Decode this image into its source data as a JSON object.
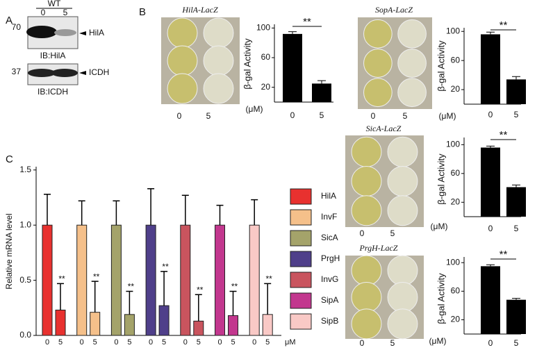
{
  "panel_labels": [
    "A",
    "B",
    "C"
  ],
  "blot": {
    "condition": "WT",
    "lanes": [
      "0",
      "5"
    ],
    "rows": [
      {
        "marker": "70",
        "band": "HilA",
        "antibody": "IB:HilA"
      },
      {
        "marker": "37",
        "band": "ICDH",
        "antibody": "IB:ICDH"
      }
    ]
  },
  "chart_data": [
    {
      "type": "bar",
      "title": "HilA-LacZ",
      "plate_labels": [
        "0",
        "5"
      ],
      "unit": "(μM)",
      "y_label": "β-gal Activity",
      "categories": [
        "0",
        "5"
      ],
      "values": [
        92,
        25
      ],
      "errors": [
        3,
        4
      ],
      "significance": "**",
      "color": "#000000",
      "ylim": [
        0,
        105
      ],
      "yticks": [
        20,
        60,
        100
      ]
    },
    {
      "type": "bar",
      "title": "SopA-LacZ",
      "plate_labels": [
        "0",
        "5"
      ],
      "unit": "(μM)",
      "y_label": "β-gal Activity",
      "categories": [
        "0",
        "5"
      ],
      "values": [
        96,
        34
      ],
      "errors": [
        3,
        4
      ],
      "significance": "**",
      "color": "#000000",
      "ylim": [
        0,
        105
      ],
      "yticks": [
        20,
        60,
        100
      ]
    },
    {
      "type": "bar",
      "title": "SicA-LacZ",
      "plate_labels": [
        "0",
        "5"
      ],
      "unit": "(μM)",
      "y_label": "β-gal Activity",
      "categories": [
        "0",
        "5"
      ],
      "values": [
        96,
        41
      ],
      "errors": [
        2,
        3
      ],
      "significance": "**",
      "color": "#000000",
      "ylim": [
        0,
        110
      ],
      "yticks": [
        20,
        60,
        100
      ]
    },
    {
      "type": "bar",
      "title": "PrgH-LacZ",
      "plate_labels": [
        "0",
        "5"
      ],
      "unit": "(μM)",
      "y_label": "β-gal Activity",
      "categories": [
        "0",
        "5"
      ],
      "values": [
        95,
        48
      ],
      "errors": [
        2,
        2
      ],
      "significance": "**",
      "color": "#000000",
      "ylim": [
        0,
        108
      ],
      "yticks": [
        20,
        60,
        100
      ]
    },
    {
      "type": "grouped-bar",
      "y_label": "Relative mRNA level",
      "categories": [
        "0",
        "5"
      ],
      "unit": "μM",
      "significance": "**",
      "ylim": [
        0,
        1.53
      ],
      "yticks": [
        {
          "value": 0,
          "label": "0.0"
        },
        {
          "value": 0.5,
          "label": "0.5"
        },
        {
          "value": 1,
          "label": "1.0"
        },
        {
          "value": 1.5,
          "label": "1.5"
        }
      ],
      "series": [
        {
          "name": "HilA",
          "color": "#e8312f",
          "values": [
            1,
            0.23
          ],
          "errors": [
            0.28,
            0.24
          ]
        },
        {
          "name": "InvF",
          "color": "#f5c08a",
          "values": [
            1,
            0.21
          ],
          "errors": [
            0.22,
            0.28
          ]
        },
        {
          "name": "SicA",
          "color": "#a4a36a",
          "values": [
            1,
            0.19
          ],
          "errors": [
            0.22,
            0.21
          ]
        },
        {
          "name": "PrgH",
          "color": "#4f3f8a",
          "values": [
            1,
            0.27
          ],
          "errors": [
            0.33,
            0.31
          ]
        },
        {
          "name": "InvG",
          "color": "#c9545e",
          "values": [
            1,
            0.13
          ],
          "errors": [
            0.27,
            0.24
          ]
        },
        {
          "name": "SipA",
          "color": "#c2378e",
          "values": [
            1,
            0.18
          ],
          "errors": [
            0.18,
            0.22
          ]
        },
        {
          "name": "SipB",
          "color": "#f9c9c6",
          "values": [
            1,
            0.19
          ],
          "errors": [
            0.23,
            0.28
          ]
        }
      ]
    }
  ]
}
